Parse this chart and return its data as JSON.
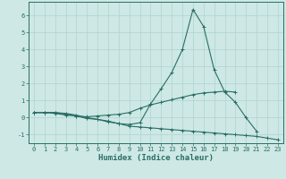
{
  "x": [
    0,
    1,
    2,
    3,
    4,
    5,
    6,
    7,
    8,
    9,
    10,
    11,
    12,
    13,
    14,
    15,
    16,
    17,
    18,
    19,
    20,
    21,
    22,
    23
  ],
  "line1": [
    0.3,
    0.3,
    0.25,
    0.15,
    0.1,
    -0.05,
    -0.1,
    -0.25,
    -0.35,
    -0.4,
    -0.3,
    0.8,
    1.7,
    2.65,
    4.0,
    6.35,
    5.35,
    2.8,
    1.5,
    0.9,
    0.0,
    -0.8,
    null,
    null
  ],
  "line2": [
    0.3,
    0.3,
    0.3,
    0.2,
    0.1,
    0.05,
    0.1,
    0.15,
    0.2,
    0.3,
    0.55,
    0.75,
    0.9,
    1.05,
    1.2,
    1.35,
    1.45,
    1.5,
    1.55,
    1.5,
    null,
    null,
    null,
    null
  ],
  "line3": [
    0.3,
    0.3,
    0.3,
    0.25,
    0.15,
    0.0,
    -0.1,
    -0.2,
    -0.35,
    -0.5,
    -0.55,
    -0.6,
    -0.65,
    -0.7,
    -0.75,
    -0.8,
    -0.85,
    -0.9,
    -0.95,
    -1.0,
    -1.05,
    -1.1,
    -1.2,
    -1.3
  ],
  "bg_color": "#cde8e5",
  "grid_color": "#aed4d0",
  "line_color": "#2a6e65",
  "xlabel": "Humidex (Indice chaleur)",
  "xlim": [
    -0.5,
    23.5
  ],
  "ylim": [
    -1.5,
    6.8
  ],
  "yticks": [
    -1,
    0,
    1,
    2,
    3,
    4,
    5,
    6
  ],
  "xticks": [
    0,
    1,
    2,
    3,
    4,
    5,
    6,
    7,
    8,
    9,
    10,
    11,
    12,
    13,
    14,
    15,
    16,
    17,
    18,
    19,
    20,
    21,
    22,
    23
  ],
  "tick_fontsize": 5.0,
  "xlabel_fontsize": 6.5,
  "line_width": 0.8,
  "marker_size": 2.5
}
